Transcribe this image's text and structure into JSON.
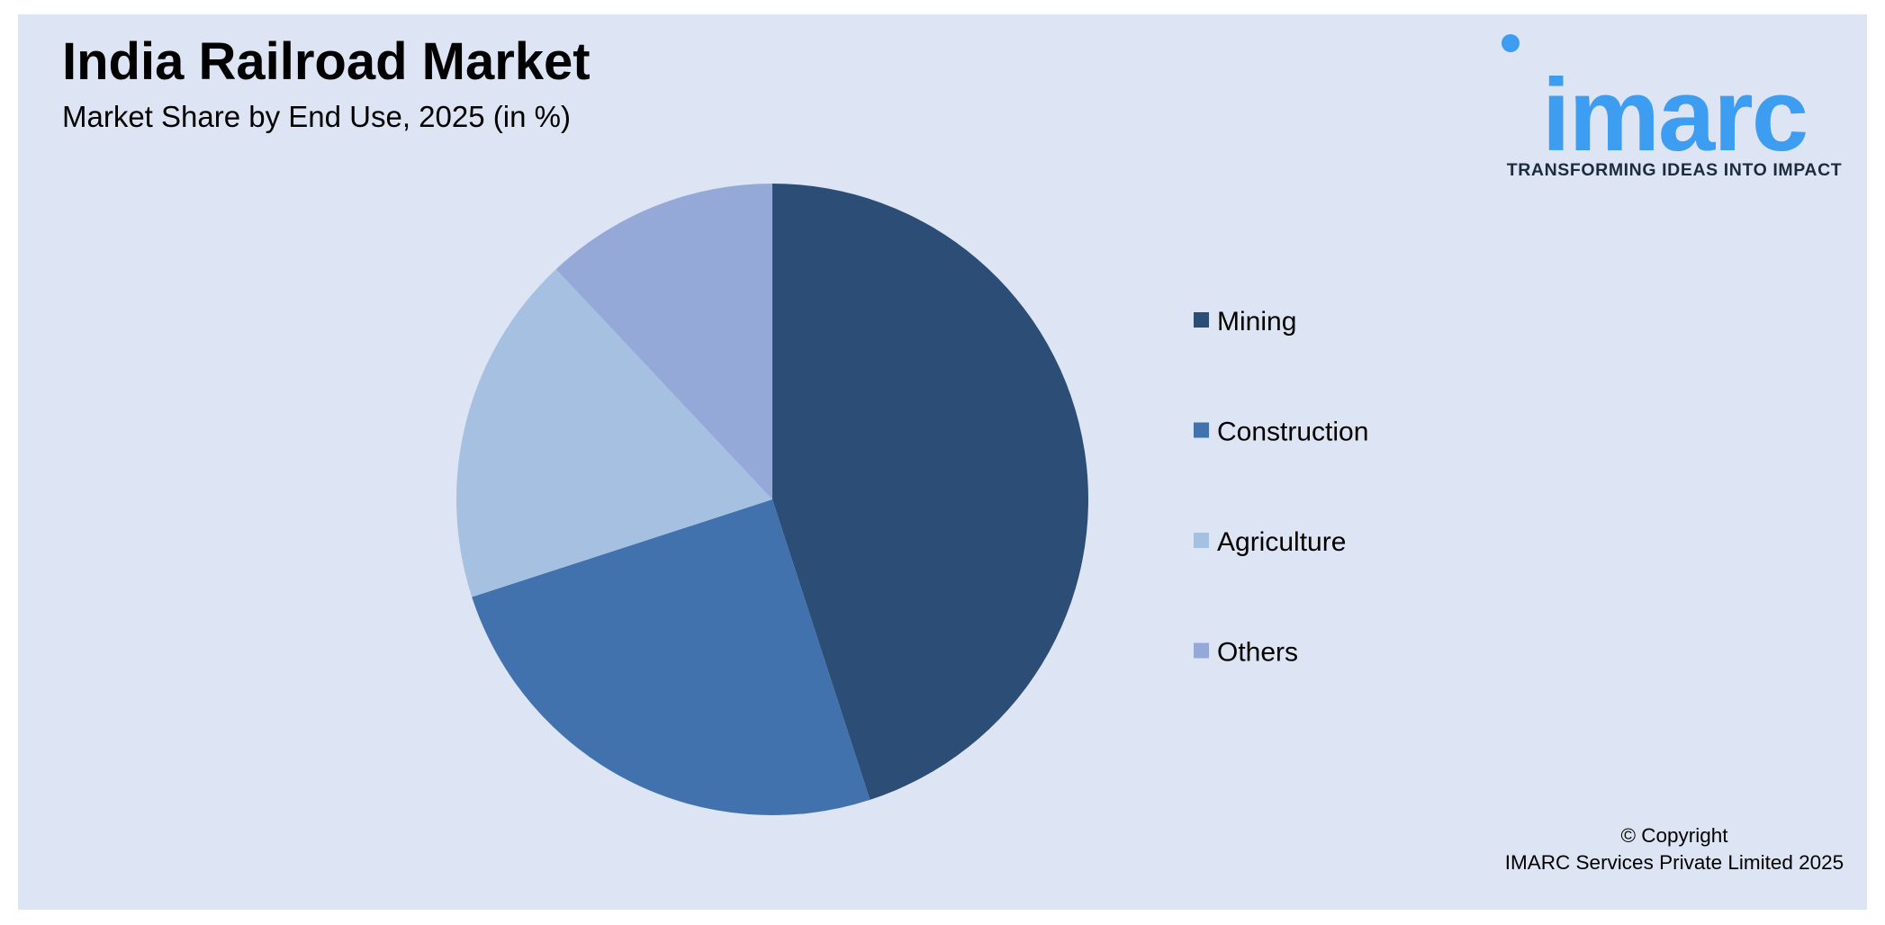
{
  "header": {
    "title": "India Railroad Market",
    "subtitle": "Market Share by End Use, 2025 (in %)"
  },
  "logo": {
    "wordmark": "imarc",
    "tagline": "TRANSFORMING IDEAS INTO IMPACT",
    "color": "#3d9df0"
  },
  "chart_data": {
    "type": "pie",
    "title": "Market Share by End Use, 2025 (in %)",
    "categories": [
      "Mining",
      "Construction",
      "Agriculture",
      "Others"
    ],
    "values": [
      45,
      25,
      18,
      12
    ],
    "colors": [
      "#2c4d76",
      "#4172ae",
      "#a5c0e1",
      "#95a9d8"
    ],
    "start_angle_deg": 0,
    "direction": "clockwise",
    "legend_position": "right"
  },
  "footer": {
    "copyright_line1": "© Copyright",
    "copyright_line2": "IMARC Services Private Limited 2025"
  }
}
